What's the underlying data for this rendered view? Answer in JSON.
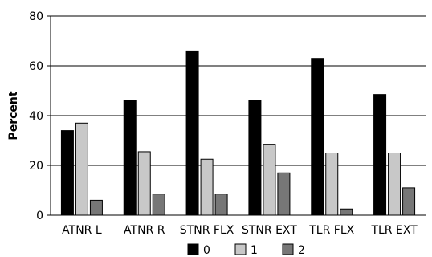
{
  "chart_data": {
    "type": "bar",
    "title": "",
    "xlabel": "",
    "ylabel": "Percent",
    "ylim": [
      0,
      80
    ],
    "yticks": [
      0,
      20,
      40,
      60,
      80
    ],
    "grid": true,
    "legend_position": "bottom",
    "categories": [
      "ATNR L",
      "ATNR R",
      "STNR FLX",
      "STNR EXT",
      "TLR FLX",
      "TLR EXT"
    ],
    "series": [
      {
        "name": "0",
        "color": "#000000",
        "values": [
          34,
          46,
          66,
          46,
          63,
          48.5
        ]
      },
      {
        "name": "1",
        "color": "#c8c8c8",
        "values": [
          37,
          25.5,
          22.5,
          28.5,
          25,
          25
        ]
      },
      {
        "name": "2",
        "color": "#777777",
        "values": [
          6,
          8.5,
          8.5,
          17,
          2.5,
          11
        ]
      }
    ]
  }
}
